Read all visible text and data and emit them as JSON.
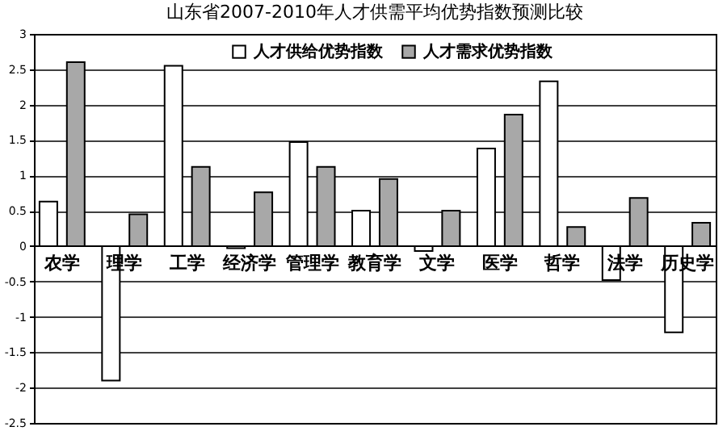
{
  "chart_data": {
    "type": "bar",
    "title": "山东省2007-2010年人才供需平均优势指数预测比较",
    "categories": [
      "农学",
      "理学",
      "工学",
      "经济学",
      "管理学",
      "教育学",
      "文学",
      "医学",
      "哲学",
      "法学",
      "历史学"
    ],
    "series": [
      {
        "name": "人才供给优势指数",
        "color": "#ffffff",
        "values": [
          0.63,
          -1.9,
          2.55,
          -0.03,
          1.47,
          0.5,
          -0.07,
          1.38,
          2.33,
          -0.48,
          -1.22
        ]
      },
      {
        "name": "人才需求优势指数",
        "color": "#a8a8a8",
        "values": [
          2.6,
          0.45,
          1.12,
          0.76,
          1.12,
          0.95,
          0.5,
          1.86,
          0.27,
          0.68,
          0.33
        ]
      }
    ],
    "ylim": [
      -2.5,
      3
    ],
    "yticks": [
      -2.5,
      -2,
      -1.5,
      -1,
      -0.5,
      0,
      0.5,
      1,
      1.5,
      2,
      2.5,
      3
    ],
    "grid": "y",
    "legend": "top"
  }
}
